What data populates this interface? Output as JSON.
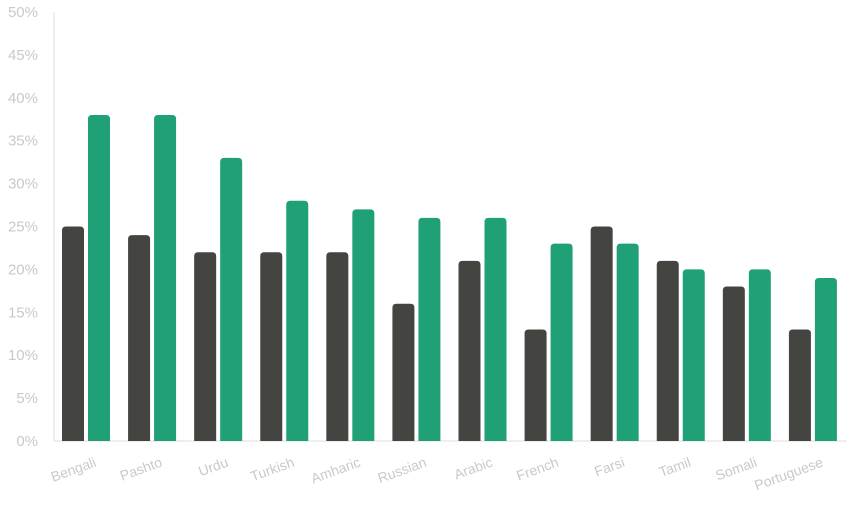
{
  "chart_data": {
    "type": "bar",
    "title": "",
    "xlabel": "",
    "ylabel": "",
    "ylim": [
      0,
      0.5
    ],
    "yticks": [
      0,
      0.05,
      0.1,
      0.15,
      0.2,
      0.25,
      0.3,
      0.35,
      0.4,
      0.45,
      0.5
    ],
    "ytick_labels": [
      "0%",
      "5%",
      "10%",
      "15%",
      "20%",
      "25%",
      "30%",
      "35%",
      "40%",
      "45%",
      "50%"
    ],
    "grid": false,
    "legend": "none",
    "categories": [
      "Bengali",
      "Pashto",
      "Urdu",
      "Turkish",
      "Amharic",
      "Russian",
      "Arabic",
      "French",
      "Farsi",
      "Tamil",
      "Somali",
      "Portuguese"
    ],
    "series": [
      {
        "color": "#444441",
        "values": [
          0.25,
          0.24,
          0.22,
          0.22,
          0.22,
          0.16,
          0.21,
          0.13,
          0.25,
          0.21,
          0.18,
          0.13
        ]
      },
      {
        "color": "#1fa077",
        "values": [
          0.38,
          0.38,
          0.33,
          0.28,
          0.27,
          0.26,
          0.26,
          0.23,
          0.23,
          0.2,
          0.2,
          0.19
        ]
      }
    ]
  }
}
